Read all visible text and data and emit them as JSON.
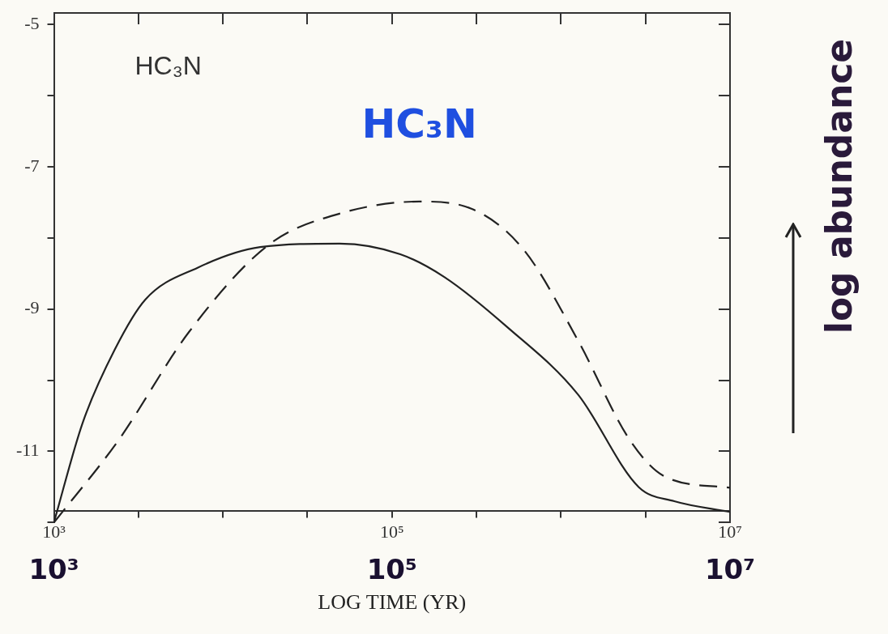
{
  "chart_data": {
    "type": "line",
    "xlabel": "LOG TIME (YR)",
    "ylabel": "log abundance",
    "log": "x",
    "grid": false,
    "legend": false,
    "marker": "none",
    "xlim": [
      1000,
      10000000
    ],
    "xticks": [
      {
        "value": 1000,
        "label": "10³"
      },
      {
        "value": 3162,
        "label": null
      },
      {
        "value": 10000,
        "label": null
      },
      {
        "value": 31623,
        "label": null
      },
      {
        "value": 100000,
        "label": "10⁵"
      },
      {
        "value": 316228,
        "label": null
      },
      {
        "value": 1000000,
        "label": null
      },
      {
        "value": 3162278,
        "label": null
      },
      {
        "value": 10000000,
        "label": "10⁷"
      }
    ],
    "ylim": [
      -12,
      -5
    ],
    "yticks": [
      -5,
      {
        "value": -6,
        "label": null
      },
      -7,
      {
        "value": -8,
        "label": null
      },
      -9,
      {
        "value": -10,
        "label": null
      },
      -11,
      {
        "value": -12,
        "label": null
      }
    ],
    "annotations": [
      "HC₃N",
      "HC₃N",
      "10³",
      "10⁵",
      "10⁷"
    ],
    "series": [
      {
        "color": "#222222",
        "line_style": "solid",
        "x": [
          1000,
          1479,
          2291,
          3467,
          7079,
          16600,
          49000,
          112000,
          204000,
          479000,
          1260000,
          2880000,
          4680000,
          10000000
        ],
        "values": [
          -12,
          -10.6,
          -9.57,
          -8.87,
          -8.42,
          -8.13,
          -8.08,
          -8.23,
          -8.55,
          -9.25,
          -10.2,
          -11.5,
          -11.7,
          -11.85
        ]
      },
      {
        "color": "#222222",
        "line_style": "dashed",
        "x": [
          1000,
          2400,
          6310,
          18600,
          49000,
          145000,
          295000,
          603000,
          1260000,
          2570000,
          4170000,
          10000000
        ],
        "values": [
          -12,
          -10.85,
          -9.32,
          -8.1,
          -7.66,
          -7.49,
          -7.59,
          -8.17,
          -9.44,
          -10.85,
          -11.36,
          -11.51
        ]
      }
    ]
  }
}
